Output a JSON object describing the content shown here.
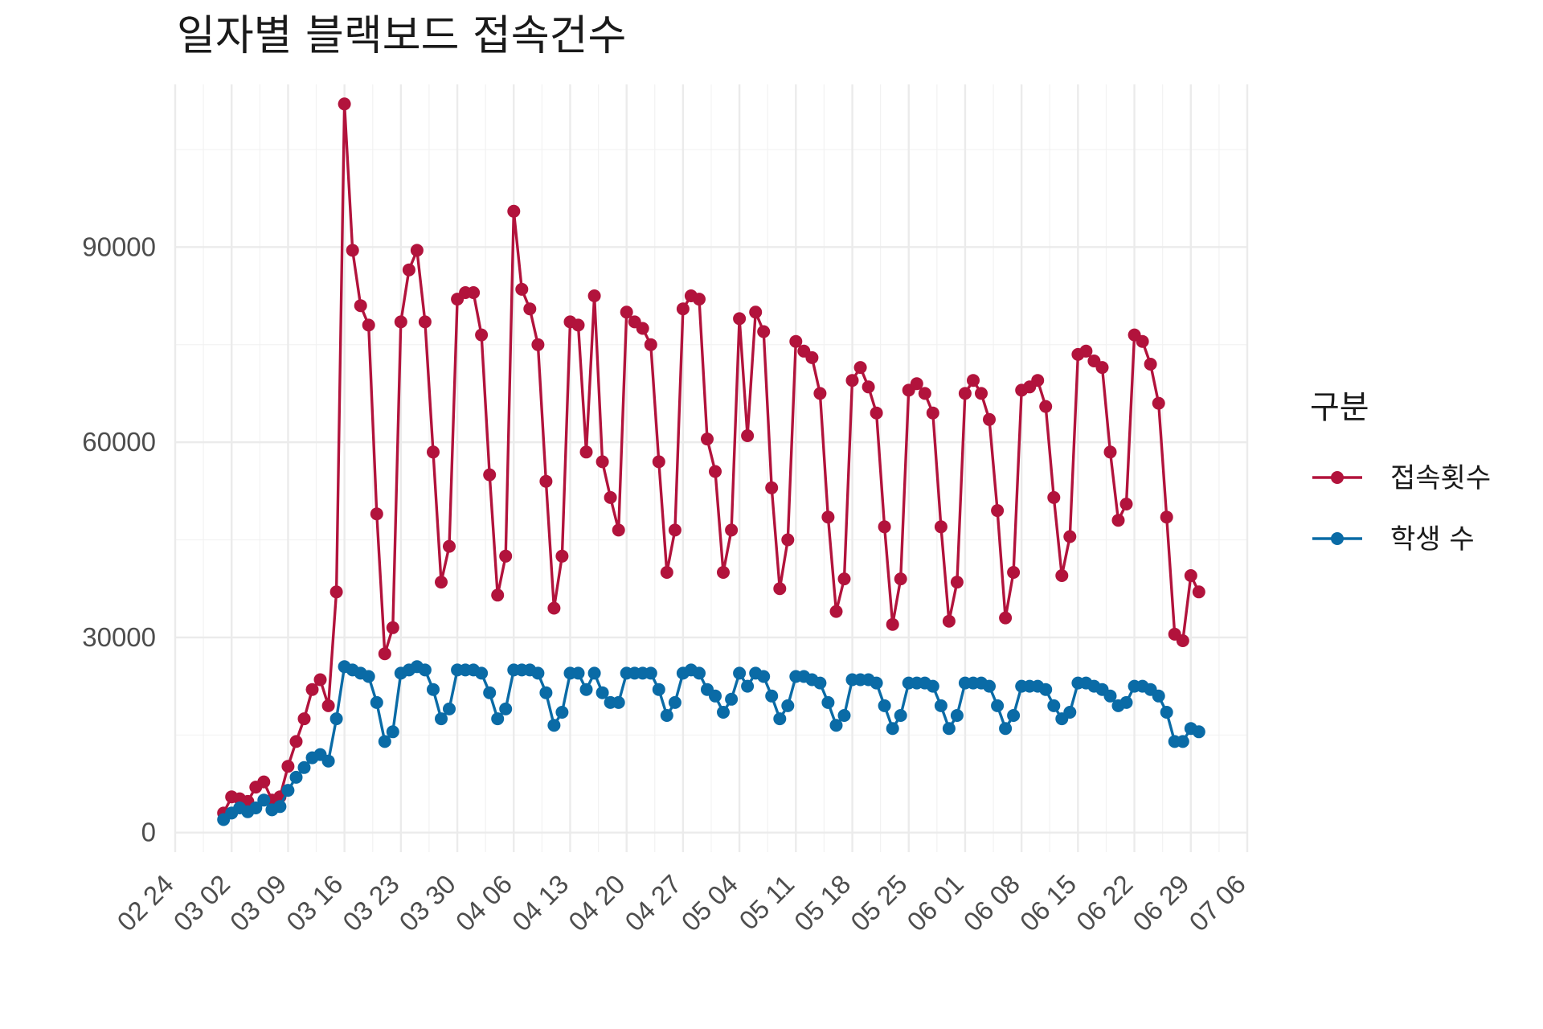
{
  "chart_data": {
    "type": "line",
    "title": "일자별 블랙보드 접속건수",
    "xlabel": "",
    "ylabel": "",
    "x_start": "2020-03-01",
    "x_end": "2020-06-30",
    "xlim": [
      "2020-02-24",
      "2020-07-06"
    ],
    "ylim": [
      0,
      112000
    ],
    "y_ticks": [
      0,
      30000,
      60000,
      90000
    ],
    "x_tick_labels": [
      "02 24",
      "03 02",
      "03 09",
      "03 16",
      "03 23",
      "03 30",
      "04 06",
      "04 13",
      "04 20",
      "04 27",
      "05 04",
      "05 11",
      "05 18",
      "05 25",
      "06 01",
      "06 08",
      "06 15",
      "06 22",
      "06 29",
      "07 06"
    ],
    "grid": true,
    "legend": {
      "title": "구분",
      "position": "right"
    },
    "series": [
      {
        "name": "접속횟수",
        "color": "#B2133C",
        "values": [
          3000,
          5500,
          5200,
          4800,
          7000,
          7800,
          5000,
          5500,
          10200,
          14000,
          17500,
          22000,
          23500,
          19500,
          37000,
          112000,
          89500,
          81000,
          78000,
          49000,
          27500,
          31500,
          78500,
          86500,
          89500,
          78500,
          58500,
          38500,
          44000,
          82000,
          83000,
          83000,
          76500,
          55000,
          36500,
          42500,
          95500,
          83500,
          80500,
          75000,
          54000,
          34500,
          42500,
          78500,
          78000,
          58500,
          82500,
          57000,
          51500,
          46500,
          80000,
          78500,
          77500,
          75000,
          57000,
          40000,
          46500,
          80500,
          82500,
          82000,
          60500,
          55500,
          40000,
          46500,
          79000,
          61000,
          80000,
          77000,
          53000,
          37500,
          45000,
          75500,
          74000,
          73000,
          67500,
          48500,
          34000,
          39000,
          69500,
          71500,
          68500,
          64500,
          47000,
          32000,
          39000,
          68000,
          69000,
          67500,
          64500,
          47000,
          32500,
          38500,
          67500,
          69500,
          67500,
          63500,
          49500,
          33000,
          40000,
          68000,
          68500,
          69500,
          65500,
          51500,
          39500,
          45500,
          73500,
          74000,
          72500,
          71500,
          58500,
          48000,
          50500,
          76500,
          75500,
          72000,
          66000,
          48500,
          30500,
          29500,
          39500,
          37000
        ]
      },
      {
        "name": "학생 수",
        "color": "#0A6BA6",
        "values": [
          2000,
          3000,
          3800,
          3200,
          3800,
          5000,
          3500,
          4000,
          6500,
          8500,
          10000,
          11500,
          12000,
          11000,
          17500,
          25500,
          25000,
          24500,
          24000,
          20000,
          14000,
          15500,
          24500,
          25000,
          25500,
          25000,
          22000,
          17500,
          19000,
          25000,
          25000,
          25000,
          24500,
          21500,
          17500,
          19000,
          25000,
          25000,
          25000,
          24500,
          21500,
          16500,
          18500,
          24500,
          24500,
          22000,
          24500,
          21500,
          20000,
          20000,
          24500,
          24500,
          24500,
          24500,
          22000,
          18000,
          20000,
          24500,
          25000,
          24500,
          22000,
          21000,
          18500,
          20500,
          24500,
          22500,
          24500,
          24000,
          21000,
          17500,
          19500,
          24000,
          24000,
          23500,
          23000,
          20000,
          16500,
          18000,
          23500,
          23500,
          23500,
          23000,
          19500,
          16000,
          18000,
          23000,
          23000,
          23000,
          22500,
          19500,
          16000,
          18000,
          23000,
          23000,
          23000,
          22500,
          19500,
          16000,
          18000,
          22500,
          22500,
          22500,
          22000,
          19500,
          17500,
          18500,
          23000,
          23000,
          22500,
          22000,
          21000,
          19500,
          20000,
          22500,
          22500,
          22000,
          21000,
          18500,
          14000,
          14000,
          16000,
          15500
        ]
      }
    ]
  }
}
